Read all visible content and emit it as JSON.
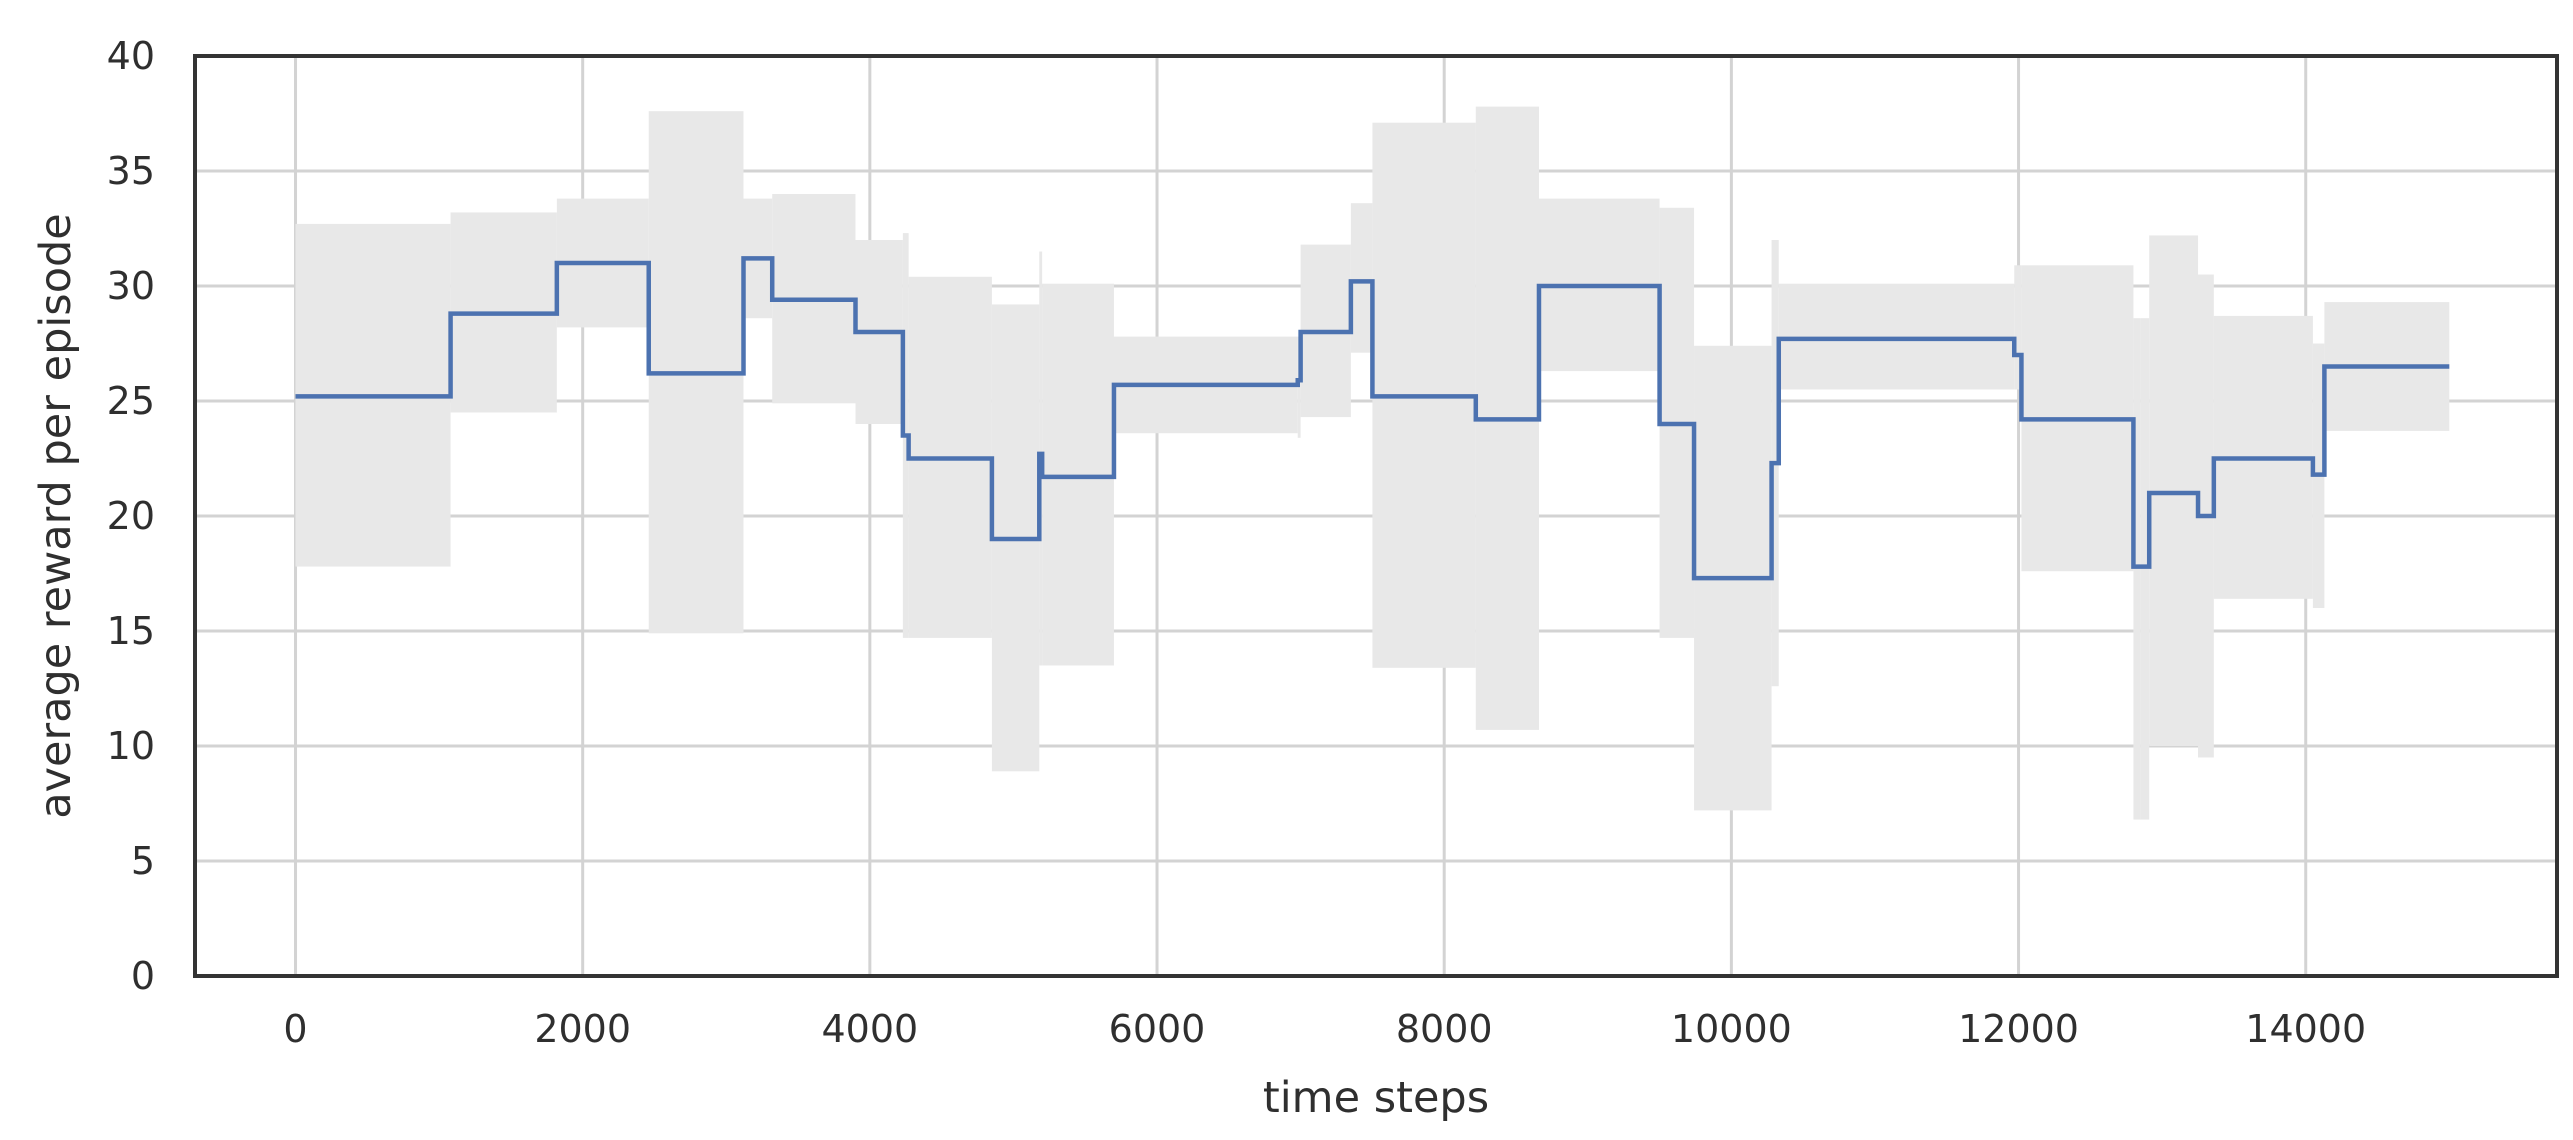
{
  "chart_data": {
    "type": "line",
    "title": "",
    "xlabel": "time steps",
    "ylabel": "average reward per episode",
    "xlim": [
      -700,
      15750
    ],
    "ylim": [
      0,
      40
    ],
    "xticks": [
      0,
      2000,
      4000,
      6000,
      8000,
      10000,
      12000,
      14000
    ],
    "yticks": [
      0,
      5,
      10,
      15,
      20,
      25,
      30,
      35,
      40
    ],
    "xtick_labels": [
      "0",
      "2000",
      "4000",
      "6000",
      "8000",
      "10000",
      "12000",
      "14000"
    ],
    "ytick_labels": [
      "0",
      "5",
      "10",
      "15",
      "20",
      "25",
      "30",
      "35",
      "40"
    ],
    "grid": true,
    "legend": "none",
    "colors": {
      "line": "#4c72b0",
      "band": "#e8e8e8",
      "grid": "#d3d3d3",
      "frame": "#333333"
    },
    "series": [
      {
        "step": "post",
        "x": [
          0,
          1080,
          1820,
          2460,
          3120,
          3320,
          3900,
          4230,
          4270,
          4850,
          5180,
          5200,
          5700,
          6980,
          7000,
          7350,
          7500,
          8220,
          8660,
          9500,
          9740,
          10280,
          10330,
          11970,
          12020,
          12800,
          12850,
          12910,
          13250,
          13360,
          14050,
          14130,
          15000
        ],
        "values": [
          25.2,
          28.8,
          31.0,
          26.2,
          31.2,
          29.4,
          28.0,
          23.5,
          22.5,
          19.0,
          22.7,
          21.7,
          25.7,
          25.9,
          28.0,
          30.2,
          25.2,
          24.2,
          30.0,
          24.0,
          17.3,
          22.3,
          27.7,
          27.0,
          24.2,
          17.8,
          17.8,
          21.0,
          20.0,
          22.5,
          21.8,
          26.5,
          26.5
        ],
        "lower": [
          17.8,
          24.5,
          28.2,
          14.9,
          28.6,
          24.9,
          24.0,
          14.7,
          14.7,
          8.9,
          13.5,
          13.5,
          23.6,
          23.4,
          24.3,
          27.1,
          13.4,
          10.7,
          26.3,
          14.7,
          7.2,
          12.6,
          25.5,
          25.5,
          17.6,
          6.8,
          6.8,
          10.0,
          9.5,
          16.4,
          16.0,
          23.7,
          23.7
        ],
        "upper": [
          32.7,
          33.2,
          33.8,
          37.6,
          33.8,
          34.0,
          32.0,
          32.3,
          30.4,
          29.2,
          31.5,
          30.1,
          27.8,
          27.8,
          31.8,
          33.6,
          37.1,
          37.8,
          33.8,
          33.4,
          27.4,
          32.0,
          30.1,
          30.9,
          30.9,
          28.6,
          28.6,
          32.2,
          30.5,
          28.7,
          27.5,
          29.3,
          29.3
        ]
      }
    ]
  }
}
